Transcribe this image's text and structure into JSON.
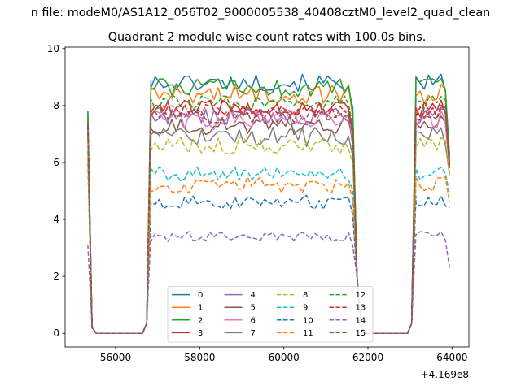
{
  "chart_data": {
    "type": "line",
    "suptitle": "n file: modeM0/AS1A12_056T02_9000005538_40408cztM0_level2_quad_clean",
    "title": "Quadrant 2 module wise count rates with 100.0s bins.",
    "xlabel": "",
    "ylabel": "",
    "x_offset_label": "+4.169e8",
    "xlim": [
      54800,
      64400
    ],
    "ylim": [
      -0.48,
      10.05
    ],
    "x_ticks": [
      56000,
      58000,
      60000,
      62000,
      64000
    ],
    "x_tick_labels": [
      "56000",
      "58000",
      "60000",
      "62000",
      "64000"
    ],
    "y_ticks": [
      0,
      2,
      4,
      6,
      8,
      10
    ],
    "y_tick_labels": [
      "0",
      "2",
      "4",
      "6",
      "8",
      "10"
    ],
    "grid": false,
    "legend": {
      "placement": "lower center",
      "ncol": 4
    },
    "segments": [
      {
        "x_start": 55340,
        "x_end": 55440,
        "step": 100,
        "kind": "drop"
      },
      {
        "x_start": 55540,
        "x_end": 56640,
        "step": 100,
        "kind": "zero"
      },
      {
        "x_start": 56740,
        "x_end": 56840,
        "step": 100,
        "kind": "rise"
      },
      {
        "x_start": 56840,
        "x_end": 61540,
        "step": 100,
        "kind": "plateau"
      },
      {
        "x_start": 61640,
        "x_end": 61840,
        "step": 100,
        "kind": "fall"
      },
      {
        "x_start": 61940,
        "x_end": 62940,
        "step": 100,
        "kind": "zero"
      },
      {
        "x_start": 63040,
        "x_end": 63140,
        "step": 100,
        "kind": "rise"
      },
      {
        "x_start": 63140,
        "x_end": 63840,
        "step": 100,
        "kind": "plateau"
      },
      {
        "x_start": 63940,
        "x_end": 63940,
        "step": 100,
        "kind": "end"
      }
    ],
    "series": [
      {
        "name": "0",
        "color": "#1f77b4",
        "dash": "solid",
        "level": 8.8,
        "noise": 0.3,
        "start": 7.8,
        "end": 6.3
      },
      {
        "name": "1",
        "color": "#ff7f0e",
        "dash": "solid",
        "level": 8.4,
        "noise": 0.35,
        "start": 7.6,
        "end": 6.0
      },
      {
        "name": "2",
        "color": "#2ca02c",
        "dash": "solid",
        "level": 8.6,
        "noise": 0.35,
        "start": 7.7,
        "end": 6.2
      },
      {
        "name": "3",
        "color": "#d62728",
        "dash": "solid",
        "level": 7.9,
        "noise": 0.3,
        "start": 7.4,
        "end": 6.0
      },
      {
        "name": "4",
        "color": "#9467bd",
        "dash": "solid",
        "level": 7.6,
        "noise": 0.3,
        "start": 7.2,
        "end": 5.9
      },
      {
        "name": "5",
        "color": "#8c564b",
        "dash": "solid",
        "level": 7.3,
        "noise": 0.35,
        "start": 7.1,
        "end": 5.8
      },
      {
        "name": "6",
        "color": "#e377c2",
        "dash": "solid",
        "level": 7.5,
        "noise": 0.35,
        "start": 7.2,
        "end": 5.9
      },
      {
        "name": "7",
        "color": "#7f7f7f",
        "dash": "solid",
        "level": 6.9,
        "noise": 0.35,
        "start": 6.9,
        "end": 5.6
      },
      {
        "name": "8",
        "color": "#bcbd22",
        "dash": "dashed",
        "level": 6.6,
        "noise": 0.3,
        "start": 6.8,
        "end": 5.5
      },
      {
        "name": "9",
        "color": "#17becf",
        "dash": "dashed",
        "level": 5.6,
        "noise": 0.25,
        "start": 6.4,
        "end": 4.9
      },
      {
        "name": "10",
        "color": "#1f77b4",
        "dash": "dashed",
        "level": 4.6,
        "noise": 0.25,
        "start": 6.0,
        "end": 4.4
      },
      {
        "name": "11",
        "color": "#ff7f0e",
        "dash": "dashed",
        "level": 5.2,
        "noise": 0.3,
        "start": 6.2,
        "end": 4.6
      },
      {
        "name": "12",
        "color": "#2ca02c",
        "dash": "dashed",
        "level": 8.1,
        "noise": 0.25,
        "start": 7.5,
        "end": 6.1
      },
      {
        "name": "13",
        "color": "#d62728",
        "dash": "dashed",
        "level": 7.8,
        "noise": 0.25,
        "start": 7.3,
        "end": 5.9
      },
      {
        "name": "14",
        "color": "#9467bd",
        "dash": "dashed",
        "level": 3.4,
        "noise": 0.18,
        "start": 3.1,
        "end": 2.3
      },
      {
        "name": "15",
        "color": "#8c564b",
        "dash": "dashed",
        "level": 7.7,
        "noise": 0.3,
        "start": 7.3,
        "end": 5.8
      }
    ]
  }
}
